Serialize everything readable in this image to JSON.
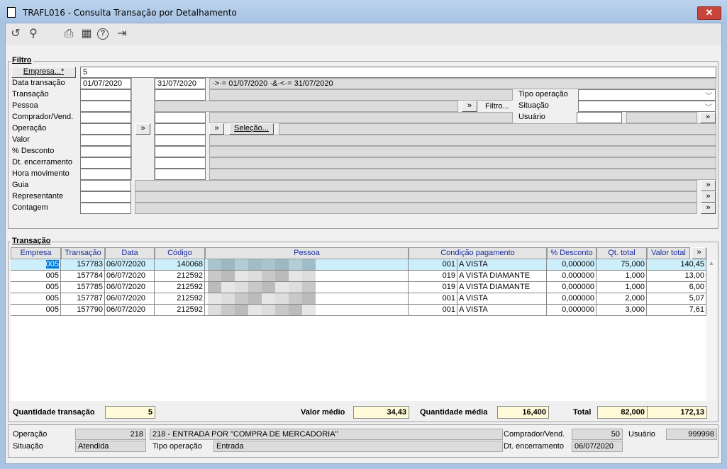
{
  "window": {
    "title": "TRAFL016 - Consulta Transação por Detalhamento",
    "close": "✕"
  },
  "toolbar": [
    {
      "icon": "refresh-icon",
      "glyph": "↺"
    },
    {
      "icon": "search-icon",
      "glyph": "⚲"
    },
    {
      "icon": "print-icon",
      "glyph": "⎙"
    },
    {
      "icon": "calendar-icon",
      "glyph": "▦"
    },
    {
      "icon": "help-icon",
      "glyph": "?"
    },
    {
      "icon": "exit-icon",
      "glyph": "⇥"
    }
  ],
  "filtro": {
    "title": "Filtro",
    "empresa_button": "Empresa...*",
    "empresa_value": "5",
    "labels": [
      "Data transação",
      "Transação",
      "Pessoa",
      "Comprador/Vend.",
      "Operação",
      "Valor",
      "% Desconto",
      "Dt. encerramento",
      "Hora movimento",
      "Guia",
      "Representante",
      "Contagem"
    ],
    "data_inicio": "01/07/2020",
    "data_fim": "31/07/2020",
    "data_expressao": "·>·= 01/07/2020 ·&·<·= 31/07/2020",
    "expand_button": "»",
    "filtro_button": "Filtro...",
    "selecao_button": "Seleção...",
    "tipo_operacao_label": "Tipo operação",
    "situacao_label": "Situação",
    "usuario_label": "Usuário",
    "tipo_operacao_value": "",
    "situacao_value": "",
    "usuario_value": ""
  },
  "transacao": {
    "title": "Transação",
    "columns": [
      "Empresa",
      "Transação",
      "Data",
      "Código",
      "Pessoa",
      "Condição pagamento",
      "% Desconto",
      "Qt. total",
      "Valor total"
    ],
    "more_button": "»",
    "rows": [
      {
        "empresa": "005",
        "transacao": "157783",
        "data": "06/07/2020",
        "codigo": "140068",
        "pessoa": "",
        "cond_cod": "001",
        "cond": "A VISTA",
        "desconto": "0,000000",
        "qt": "75,000",
        "valor": "140,45"
      },
      {
        "empresa": "005",
        "transacao": "157784",
        "data": "06/07/2020",
        "codigo": "212592",
        "pessoa": "",
        "cond_cod": "019",
        "cond": "A VISTA DIAMANTE",
        "desconto": "0,000000",
        "qt": "1,000",
        "valor": "13,00"
      },
      {
        "empresa": "005",
        "transacao": "157785",
        "data": "06/07/2020",
        "codigo": "212592",
        "pessoa": "",
        "cond_cod": "019",
        "cond": "A VISTA DIAMANTE",
        "desconto": "0,000000",
        "qt": "1,000",
        "valor": "6,00"
      },
      {
        "empresa": "005",
        "transacao": "157787",
        "data": "06/07/2020",
        "codigo": "212592",
        "pessoa": "",
        "cond_cod": "001",
        "cond": "A VISTA",
        "desconto": "0,000000",
        "qt": "2,000",
        "valor": "5,07"
      },
      {
        "empresa": "005",
        "transacao": "157790",
        "data": "06/07/2020",
        "codigo": "212592",
        "pessoa": "",
        "cond_cod": "001",
        "cond": "A VISTA",
        "desconto": "0,000000",
        "qt": "3,000",
        "valor": "7,61"
      }
    ],
    "selected_row": 0
  },
  "totais": {
    "qtd_transacao_label": "Quantidade transação",
    "qtd_transacao": "5",
    "valor_medio_label": "Valor médio",
    "valor_medio": "34,43",
    "qtd_media_label": "Quantidade média",
    "qtd_media": "16,400",
    "total_label": "Total",
    "total_qt": "82,000",
    "total_valor": "172,13"
  },
  "detalhe": {
    "operacao_label": "Operação",
    "operacao_cod": "218",
    "operacao_desc": "218 - ENTRADA POR \"COMPRA DE MERCADORIA\"",
    "comprador_label": "Comprador/Vend.",
    "comprador": "50",
    "usuario_label": "Usuário",
    "usuario": "999998",
    "situacao_label": "Situação",
    "situacao": "Atendida",
    "tipo_operacao_label": "Tipo operação",
    "tipo_operacao": "Entrada",
    "dt_enc_label": "Dt. encerramento",
    "dt_enc": "06/07/2020"
  }
}
